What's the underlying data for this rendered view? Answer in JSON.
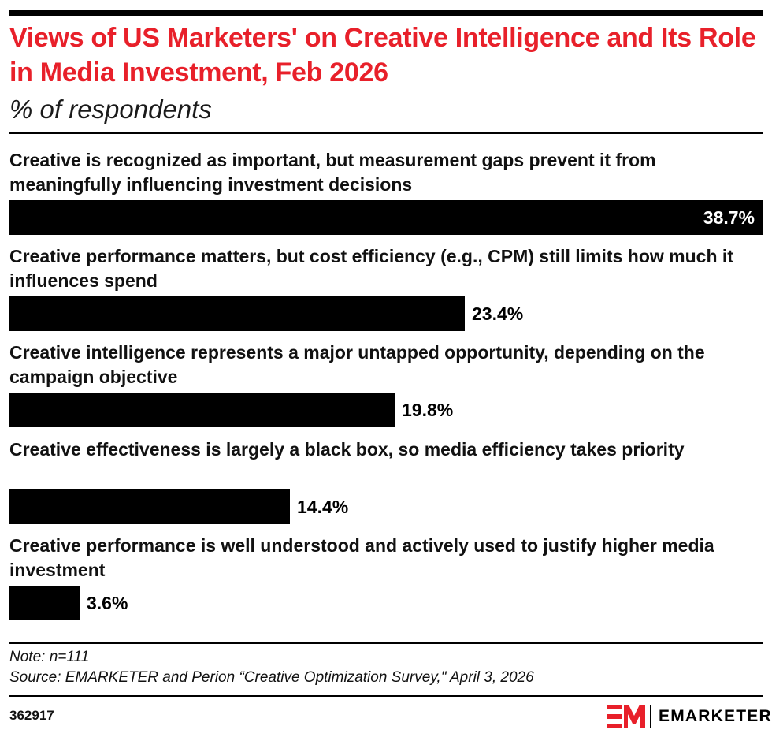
{
  "header": {
    "title": "Views of US Marketers' on Creative Intelligence and Its Role in Media Investment, Feb 2026",
    "subtitle": "% of respondents"
  },
  "chart_data": {
    "type": "bar",
    "orientation": "horizontal",
    "title": "Views of US Marketers' on Creative Intelligence and Its Role in Media Investment, Feb 2026",
    "subtitle": "% of respondents",
    "categories": [
      "Creative is recognized as important, but measurement gaps prevent it from meaningfully influencing investment decisions",
      "Creative performance matters, but cost efficiency (e.g., CPM) still limits how much it influences spend",
      "Creative intelligence represents a major untapped opportunity, depending on the campaign objective",
      "Creative effectiveness is largely a black box, so media efficiency takes priority",
      "Creative performance is well understood and actively used to justify higher media investment"
    ],
    "values": [
      38.7,
      23.4,
      19.8,
      14.4,
      3.6
    ],
    "value_labels": [
      "38.7%",
      "23.4%",
      "19.8%",
      "14.4%",
      "3.6%"
    ],
    "unit": "%",
    "bar_color": "#000000",
    "grid": false
  },
  "footer": {
    "note": "Note: n=111",
    "source": "Source: EMARKETER and Perion “Creative Optimization Survey,\" April 3, 2026",
    "chart_id": "362917"
  },
  "logo": {
    "icon": "em-logo-icon",
    "wordmark": "EMARKETER",
    "accent_color": "#e8202a"
  }
}
